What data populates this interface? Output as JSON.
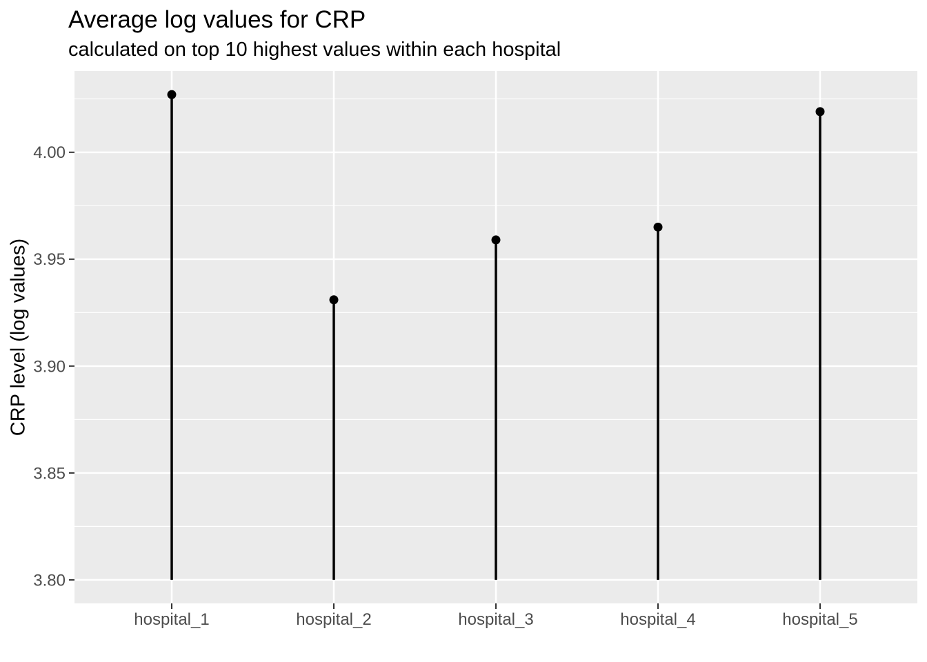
{
  "chart_data": {
    "type": "scatter",
    "variant": "lollipop",
    "title": "Average log values for CRP",
    "subtitle": "calculated on top 10 highest values within each hospital",
    "xlabel": "",
    "ylabel": "CRP level (log values)",
    "categories": [
      "hospital_1",
      "hospital_2",
      "hospital_3",
      "hospital_4",
      "hospital_5"
    ],
    "values": [
      4.027,
      3.931,
      3.959,
      3.965,
      4.019
    ],
    "stem_baseline": 3.8,
    "ylim": [
      3.789,
      4.038
    ],
    "yticks": [
      3.8,
      3.85,
      3.9,
      3.95,
      4.0
    ],
    "ytick_labels": [
      "3.80",
      "3.85",
      "3.90",
      "3.95",
      "4.00"
    ],
    "yticks_minor": [
      3.825,
      3.875,
      3.925,
      3.975,
      4.025
    ],
    "grid": {
      "horizontal_major": true,
      "horizontal_minor": true,
      "vertical_at_categories": true
    },
    "legend": "none",
    "colors": {
      "background": "#FFFFFF",
      "panel_background": "#EBEBEB",
      "gridline": "#FFFFFF",
      "stem": "#000000",
      "point": "#000000",
      "tick_label": "#4D4D4D",
      "tick_mark": "#333333",
      "title": "#000000",
      "axis_title": "#000000"
    }
  }
}
